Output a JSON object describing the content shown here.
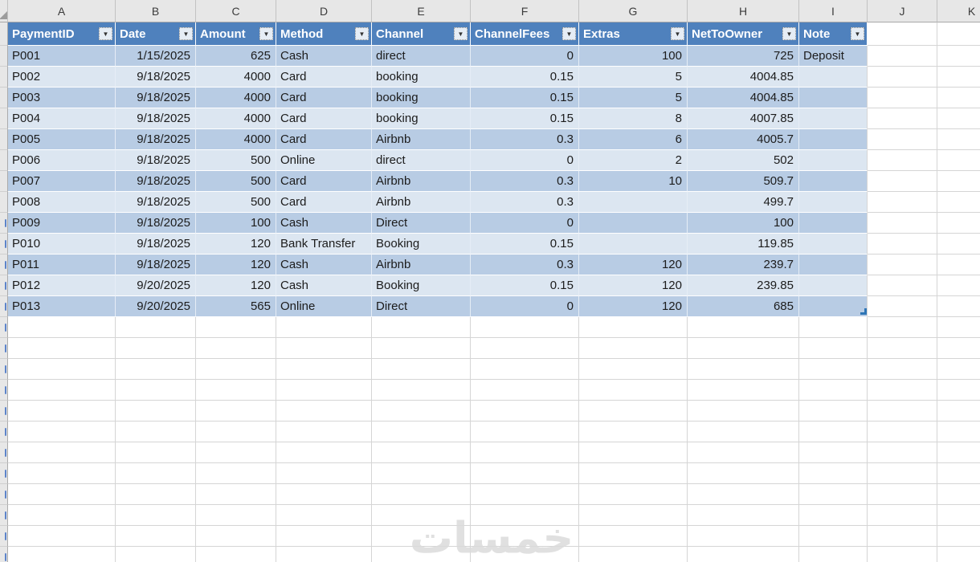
{
  "sheet": {
    "column_letters": [
      "A",
      "B",
      "C",
      "D",
      "E",
      "F",
      "G",
      "H",
      "I",
      "J",
      "K"
    ],
    "filter_glyph": "▼",
    "watermark": "خمسات",
    "colors": {
      "header_blue": "#4F81BD",
      "band_dark": "#B8CCE4",
      "band_light": "#DCE6F1",
      "gridline": "#D5D5D5",
      "strip_bg": "#E7E7E7",
      "resize_handle_blue": "#2E75B6"
    }
  },
  "table": {
    "headers": [
      "PaymentID",
      "Date",
      "Amount",
      "Method",
      "Channel",
      "ChannelFees",
      "Extras",
      "NetToOwner",
      "Note"
    ],
    "rows": [
      [
        "P001",
        "1/15/2025",
        "625",
        "Cash",
        "direct",
        "0",
        "100",
        "725",
        "Deposit"
      ],
      [
        "P002",
        "9/18/2025",
        "4000",
        "Card",
        "booking",
        "0.15",
        "5",
        "4004.85",
        ""
      ],
      [
        "P003",
        "9/18/2025",
        "4000",
        "Card",
        "booking",
        "0.15",
        "5",
        "4004.85",
        ""
      ],
      [
        "P004",
        "9/18/2025",
        "4000",
        "Card",
        "booking",
        "0.15",
        "8",
        "4007.85",
        ""
      ],
      [
        "P005",
        "9/18/2025",
        "4000",
        "Card",
        "Airbnb",
        "0.3",
        "6",
        "4005.7",
        ""
      ],
      [
        "P006",
        "9/18/2025",
        "500",
        "Online",
        "direct",
        "0",
        "2",
        "502",
        ""
      ],
      [
        "P007",
        "9/18/2025",
        "500",
        "Card",
        "Airbnb",
        "0.3",
        "10",
        "509.7",
        ""
      ],
      [
        "P008",
        "9/18/2025",
        "500",
        "Card",
        "Airbnb",
        "0.3",
        "",
        "499.7",
        ""
      ],
      [
        "P009",
        "9/18/2025",
        "100",
        "Cash",
        "Direct",
        "0",
        "",
        "100",
        ""
      ],
      [
        "P010",
        "9/18/2025",
        "120",
        "Bank Transfer",
        "Booking",
        "0.15",
        "",
        "119.85",
        ""
      ],
      [
        "P011",
        "9/18/2025",
        "120",
        "Cash",
        "Airbnb",
        "0.3",
        "120",
        "239.7",
        ""
      ],
      [
        "P012",
        "9/20/2025",
        "120",
        "Cash",
        "Booking",
        "0.15",
        "120",
        "239.85",
        ""
      ],
      [
        "P013",
        "9/20/2025",
        "565",
        "Online",
        "Direct",
        "0",
        "120",
        "685",
        ""
      ]
    ]
  }
}
